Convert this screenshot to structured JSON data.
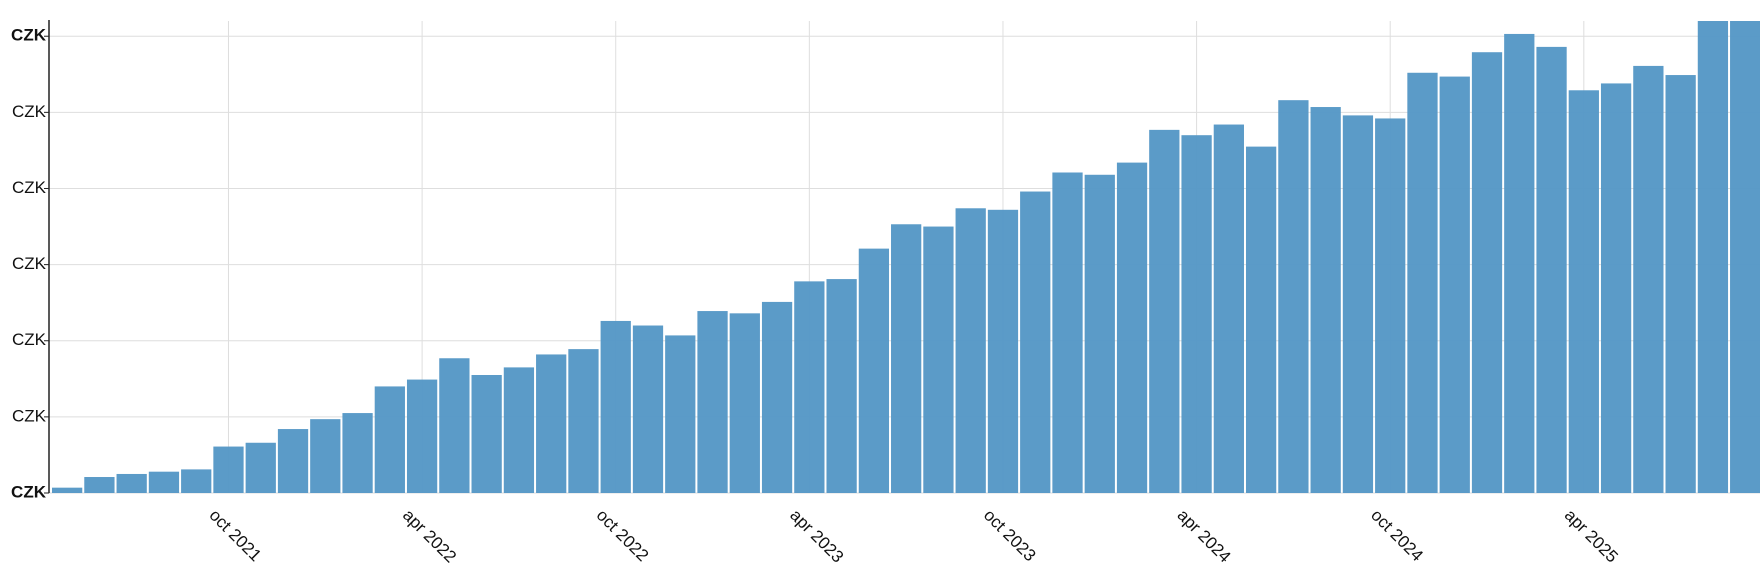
{
  "chart_data": {
    "type": "bar",
    "categories": [
      null,
      null,
      null,
      null,
      null,
      "oct 2021",
      null,
      null,
      null,
      null,
      null,
      "apr 2022",
      null,
      null,
      null,
      null,
      null,
      "oct 2022",
      null,
      null,
      null,
      null,
      null,
      "apr 2023",
      null,
      null,
      null,
      null,
      null,
      "oct 2023",
      null,
      null,
      null,
      null,
      null,
      "apr 2024",
      null,
      null,
      null,
      null,
      null,
      "oct 2024",
      null,
      null,
      null,
      null,
      null,
      "apr 2025",
      null,
      null,
      null,
      null,
      null
    ],
    "values": [
      0.07,
      0.21,
      0.25,
      0.28,
      0.31,
      0.61,
      0.66,
      0.84,
      0.97,
      1.05,
      1.4,
      1.49,
      1.77,
      1.55,
      1.65,
      1.82,
      1.89,
      2.26,
      2.2,
      2.07,
      2.39,
      2.36,
      2.51,
      2.78,
      2.81,
      3.21,
      3.53,
      3.5,
      3.74,
      3.72,
      3.96,
      4.21,
      4.18,
      4.34,
      4.77,
      4.7,
      4.84,
      4.55,
      5.16,
      5.07,
      4.96,
      4.92,
      5.52,
      5.47,
      5.79,
      6.03,
      5.86,
      5.29,
      5.38,
      5.61,
      5.49,
      6.2,
      6.2
    ],
    "color": "#5698c6",
    "ylim": [
      0,
      6.2
    ],
    "yticks": [
      {
        "value": 0,
        "label": "CZK"
      },
      {
        "value": 1,
        "label": "CZK"
      },
      {
        "value": 2,
        "label": "CZK"
      },
      {
        "value": 3,
        "label": "CZK"
      },
      {
        "value": 4,
        "label": "CZK"
      },
      {
        "value": 5,
        "label": "CZK"
      },
      {
        "value": 6,
        "label": "CZK"
      }
    ],
    "grid": true
  }
}
